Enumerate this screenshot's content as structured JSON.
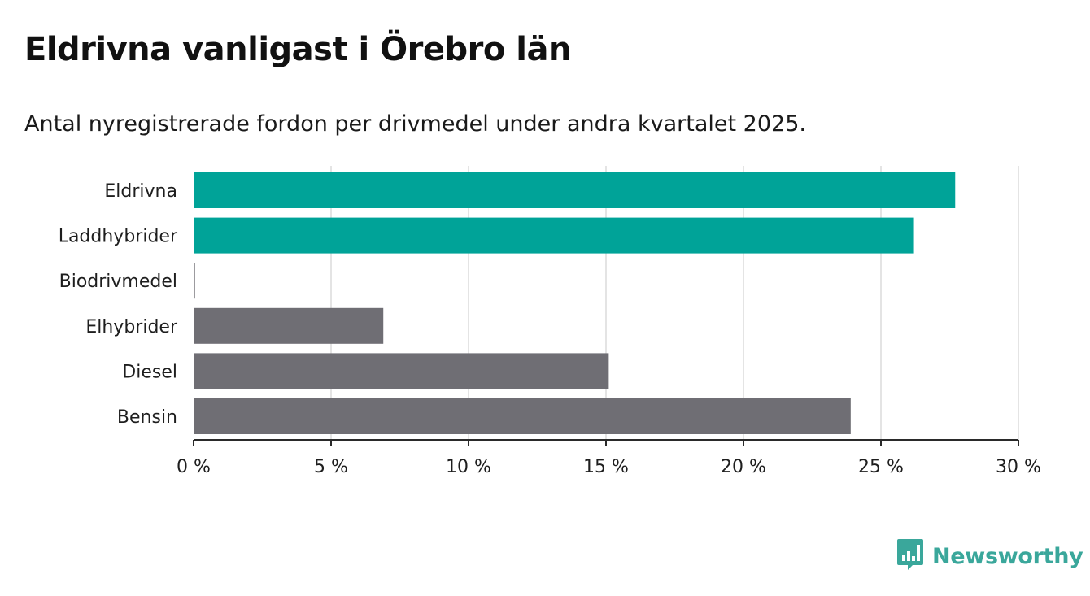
{
  "header": {
    "title": "Eldrivna vanligast i Örebro län",
    "subtitle": "Antal nyregistrerade fordon per drivmedel under andra kvartalet 2025."
  },
  "chart_data": {
    "type": "bar",
    "orientation": "horizontal",
    "categories": [
      "Eldrivna",
      "Laddhybrider",
      "Biodrivmedel",
      "Elhybrider",
      "Diesel",
      "Bensin"
    ],
    "values": [
      27.7,
      26.2,
      0.05,
      6.9,
      15.1,
      23.9
    ],
    "colors": [
      "#00a398",
      "#00a398",
      "#6f6e74",
      "#6f6e74",
      "#6f6e74",
      "#6f6e74"
    ],
    "xlim": [
      0,
      30
    ],
    "xticks": [
      0,
      5,
      10,
      15,
      20,
      25,
      30
    ],
    "xtick_labels": [
      "0 %",
      "5 %",
      "10 %",
      "15 %",
      "20 %",
      "25 %",
      "30 %"
    ],
    "grid": true,
    "xlabel": "",
    "ylabel": ""
  },
  "branding": {
    "logo_text": "Newsworthy",
    "logo_icon": "bar-chart-bubble-icon",
    "logo_color": "#3aa79b"
  }
}
